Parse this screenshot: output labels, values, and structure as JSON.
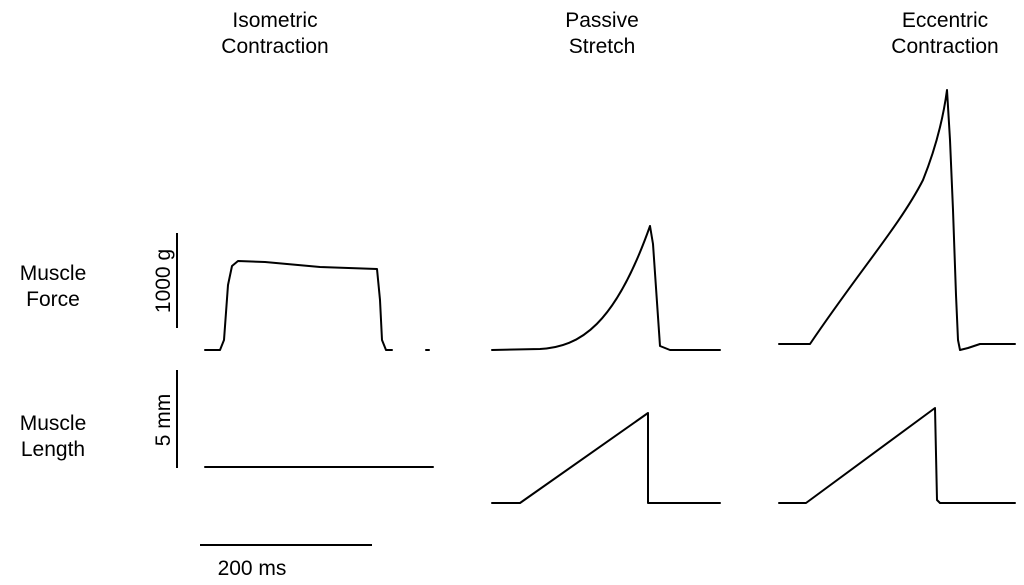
{
  "columns": [
    {
      "line1": "Isometric",
      "line2": "Contraction"
    },
    {
      "line1": "Passive",
      "line2": "Stretch"
    },
    {
      "line1": "Eccentric",
      "line2": "Contraction"
    }
  ],
  "rows": {
    "force": {
      "line1": "Muscle",
      "line2": "Force"
    },
    "length": {
      "line1": "Muscle",
      "line2": "Length"
    }
  },
  "scale_bars": {
    "force": "1000 g",
    "length": "5 mm",
    "time": "200 ms"
  }
}
